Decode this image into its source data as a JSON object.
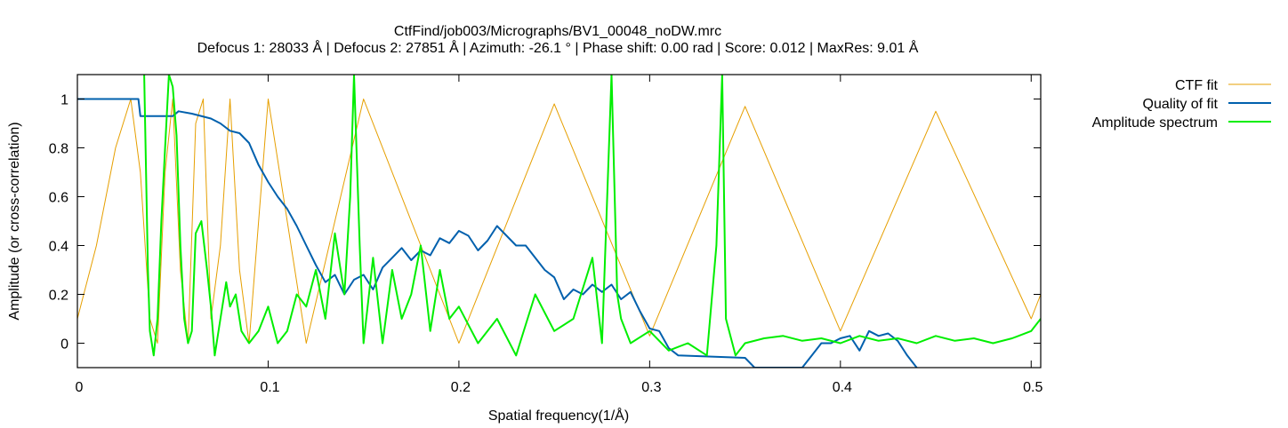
{
  "chart_data": {
    "type": "line",
    "title": "CtfFind/job003/Micrographs/BV1_00048_noDW.mrc",
    "subtitle": "Defocus 1: 28033 Å | Defocus 2: 27851 Å | Azimuth: -26.1 ° | Phase shift: 0.00 rad | Score: 0.012 | MaxRes: 9.01 Å",
    "xlabel": "Spatial frequency(1/Å)",
    "ylabel": "Amplitude (or cross-correlation)",
    "xlim": [
      0,
      0.505
    ],
    "ylim": [
      -0.1,
      1.1
    ],
    "xticks": [
      0,
      0.1,
      0.2,
      0.3,
      0.4,
      0.5
    ],
    "xtick_labels": [
      "0",
      "0.1",
      "0.2",
      "0.3",
      "0.4",
      "0.5"
    ],
    "yticks": [
      0,
      0.2,
      0.4,
      0.6,
      0.8,
      1
    ],
    "ytick_labels": [
      "0",
      "0.2",
      "0.4",
      "0.6",
      "0.8",
      "1"
    ],
    "grid": false,
    "legend_position": "outside-right-top",
    "series": [
      {
        "name": "CTF fit",
        "color": "#e69f00",
        "x": [
          0,
          0.01,
          0.02,
          0.028,
          0.033,
          0.038,
          0.042,
          0.046,
          0.05,
          0.054,
          0.058,
          0.062,
          0.066,
          0.07,
          0.075,
          0.08,
          0.085,
          0.09,
          0.1,
          0.12,
          0.15,
          0.2,
          0.25,
          0.3,
          0.35,
          0.4,
          0.45,
          0.5,
          0.505
        ],
        "y": [
          0.1,
          0.4,
          0.8,
          1.0,
          0.7,
          0.1,
          0.0,
          0.7,
          1.0,
          0.3,
          0.0,
          0.9,
          1.0,
          0.1,
          0.4,
          1.0,
          0.3,
          0.0,
          1.0,
          0.0,
          1.0,
          0.0,
          0.98,
          0.03,
          0.97,
          0.05,
          0.95,
          0.1,
          0.2
        ],
        "description_values": "oscillates between ~0.0 and ~1.0 with increasing frequency; minima rise to ~0.05–0.2 beyond 0.35"
      },
      {
        "name": "Quality of fit",
        "color": "#0060ad",
        "x": [
          0,
          0.032,
          0.033,
          0.05,
          0.053,
          0.06,
          0.07,
          0.075,
          0.08,
          0.085,
          0.09,
          0.095,
          0.1,
          0.105,
          0.11,
          0.115,
          0.12,
          0.125,
          0.13,
          0.135,
          0.14,
          0.145,
          0.15,
          0.155,
          0.16,
          0.165,
          0.17,
          0.175,
          0.18,
          0.185,
          0.19,
          0.195,
          0.2,
          0.205,
          0.21,
          0.215,
          0.22,
          0.225,
          0.23,
          0.235,
          0.24,
          0.245,
          0.25,
          0.255,
          0.26,
          0.265,
          0.27,
          0.275,
          0.28,
          0.285,
          0.29,
          0.295,
          0.3,
          0.305,
          0.31,
          0.315,
          0.35,
          0.355,
          0.36,
          0.37,
          0.38,
          0.385,
          0.39,
          0.395,
          0.4,
          0.405,
          0.41,
          0.415,
          0.42,
          0.425,
          0.43,
          0.435,
          0.44
        ],
        "y": [
          1.0,
          1.0,
          0.93,
          0.93,
          0.95,
          0.94,
          0.92,
          0.9,
          0.87,
          0.86,
          0.82,
          0.73,
          0.66,
          0.6,
          0.55,
          0.48,
          0.4,
          0.32,
          0.25,
          0.28,
          0.2,
          0.26,
          0.28,
          0.22,
          0.31,
          0.35,
          0.39,
          0.34,
          0.38,
          0.36,
          0.43,
          0.41,
          0.46,
          0.44,
          0.38,
          0.42,
          0.48,
          0.44,
          0.4,
          0.4,
          0.35,
          0.3,
          0.27,
          0.18,
          0.22,
          0.2,
          0.24,
          0.21,
          0.24,
          0.18,
          0.21,
          0.13,
          0.06,
          0.05,
          -0.02,
          -0.05,
          -0.06,
          -0.1,
          -0.1,
          -0.1,
          -0.1,
          -0.05,
          0.0,
          0.0,
          0.02,
          0.03,
          -0.03,
          0.05,
          0.03,
          0.04,
          0.01,
          -0.05,
          -0.1
        ]
      },
      {
        "name": "Amplitude spectrum",
        "color": "#00ee00",
        "x": [
          0.035,
          0.037,
          0.038,
          0.04,
          0.042,
          0.044,
          0.046,
          0.048,
          0.05,
          0.052,
          0.054,
          0.056,
          0.058,
          0.06,
          0.062,
          0.065,
          0.068,
          0.07,
          0.072,
          0.075,
          0.078,
          0.08,
          0.083,
          0.086,
          0.09,
          0.095,
          0.1,
          0.105,
          0.11,
          0.115,
          0.12,
          0.125,
          0.13,
          0.135,
          0.14,
          0.143,
          0.145,
          0.148,
          0.15,
          0.155,
          0.16,
          0.165,
          0.17,
          0.175,
          0.18,
          0.185,
          0.19,
          0.195,
          0.2,
          0.21,
          0.22,
          0.23,
          0.24,
          0.25,
          0.26,
          0.27,
          0.275,
          0.28,
          0.283,
          0.285,
          0.29,
          0.3,
          0.31,
          0.32,
          0.33,
          0.335,
          0.338,
          0.34,
          0.345,
          0.35,
          0.36,
          0.37,
          0.38,
          0.39,
          0.4,
          0.41,
          0.42,
          0.43,
          0.44,
          0.45,
          0.46,
          0.47,
          0.48,
          0.49,
          0.5,
          0.505
        ],
        "y": [
          1.1,
          0.3,
          0.05,
          -0.05,
          0.1,
          0.5,
          0.8,
          1.1,
          1.05,
          0.85,
          0.4,
          0.1,
          0.0,
          0.05,
          0.45,
          0.5,
          0.3,
          0.15,
          -0.05,
          0.1,
          0.25,
          0.15,
          0.2,
          0.05,
          0.0,
          0.05,
          0.15,
          0.0,
          0.05,
          0.2,
          0.15,
          0.3,
          0.1,
          0.45,
          0.2,
          0.6,
          1.1,
          0.4,
          0.0,
          0.35,
          0.0,
          0.3,
          0.1,
          0.2,
          0.4,
          0.05,
          0.3,
          0.1,
          0.15,
          0.0,
          0.1,
          -0.05,
          0.2,
          0.05,
          0.1,
          0.35,
          0.0,
          1.1,
          0.2,
          0.1,
          0.0,
          0.05,
          -0.03,
          0.0,
          -0.05,
          0.4,
          1.1,
          0.1,
          -0.05,
          0.0,
          0.02,
          0.03,
          0.01,
          0.02,
          0.0,
          0.03,
          0.01,
          0.02,
          0.0,
          0.03,
          0.01,
          0.02,
          0.0,
          0.02,
          0.05,
          0.1
        ]
      }
    ]
  }
}
